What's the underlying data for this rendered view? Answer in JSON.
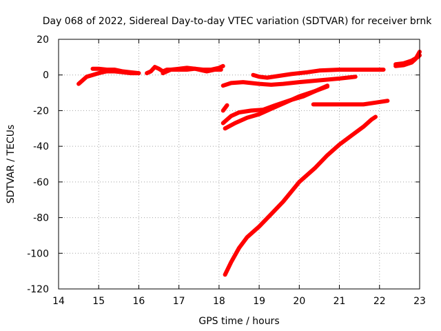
{
  "chart_data": {
    "type": "line",
    "title": "Day 068 of 2022, Sidereal Day-to-day VTEC variation (SDTVAR) for receiver brnk",
    "xlabel": "GPS time / hours",
    "ylabel": "SDTVAR / TECUs",
    "xlim": [
      14,
      23
    ],
    "ylim": [
      -120,
      20
    ],
    "xticks": [
      14,
      15,
      16,
      17,
      18,
      19,
      20,
      21,
      22,
      23
    ],
    "yticks": [
      -120,
      -100,
      -80,
      -60,
      -40,
      -20,
      0,
      20
    ],
    "grid": true,
    "color": "#ff0000",
    "series": [
      {
        "points": [
          [
            14.5,
            -5
          ],
          [
            14.6,
            -3
          ],
          [
            14.7,
            -1
          ],
          [
            14.85,
            0
          ],
          [
            15.0,
            1
          ],
          [
            15.2,
            2
          ],
          [
            15.4,
            2
          ],
          [
            15.6,
            1.5
          ],
          [
            15.8,
            1
          ],
          [
            16.0,
            1
          ]
        ]
      },
      {
        "points": [
          [
            14.85,
            3.5
          ],
          [
            15.0,
            3.5
          ],
          [
            15.2,
            3
          ],
          [
            15.4,
            3
          ],
          [
            15.6,
            2
          ],
          [
            15.8,
            1.5
          ],
          [
            16.0,
            1
          ]
        ]
      },
      {
        "points": [
          [
            16.2,
            1
          ],
          [
            16.3,
            2
          ],
          [
            16.4,
            4.5
          ],
          [
            16.5,
            3.5
          ],
          [
            16.6,
            2
          ],
          [
            16.7,
            3
          ],
          [
            16.9,
            3
          ],
          [
            17.0,
            3
          ],
          [
            17.2,
            3
          ],
          [
            17.4,
            3.5
          ],
          [
            17.6,
            3
          ],
          [
            17.8,
            3
          ],
          [
            18.0,
            4
          ],
          [
            18.1,
            5
          ]
        ]
      },
      {
        "points": [
          [
            16.6,
            1
          ],
          [
            16.7,
            2
          ],
          [
            16.8,
            3
          ],
          [
            17.0,
            3.5
          ],
          [
            17.2,
            4
          ],
          [
            17.4,
            3.5
          ],
          [
            17.6,
            2.5
          ],
          [
            17.7,
            2
          ],
          [
            17.9,
            3
          ],
          [
            18.05,
            3
          ]
        ]
      },
      {
        "points": [
          [
            18.1,
            -6
          ],
          [
            18.3,
            -4.5
          ],
          [
            18.6,
            -4
          ],
          [
            18.8,
            -4.5
          ],
          [
            19.0,
            -5
          ],
          [
            19.3,
            -5.5
          ],
          [
            19.6,
            -5
          ],
          [
            20.0,
            -4
          ],
          [
            20.5,
            -3
          ],
          [
            21.0,
            -2
          ],
          [
            21.4,
            -1
          ]
        ]
      },
      {
        "points": [
          [
            18.85,
            0
          ],
          [
            19.0,
            -1
          ],
          [
            19.2,
            -1.5
          ],
          [
            19.5,
            -0.5
          ],
          [
            19.8,
            0.5
          ],
          [
            20.2,
            1.5
          ],
          [
            20.5,
            2.5
          ],
          [
            21.0,
            3
          ],
          [
            21.5,
            3
          ],
          [
            22.0,
            3
          ],
          [
            22.1,
            3
          ]
        ]
      },
      {
        "points": [
          [
            18.1,
            -20
          ],
          [
            18.2,
            -17
          ]
        ]
      },
      {
        "points": [
          [
            18.1,
            -27
          ],
          [
            18.3,
            -23
          ],
          [
            18.5,
            -21
          ],
          [
            18.8,
            -20
          ],
          [
            19.1,
            -19.5
          ],
          [
            19.4,
            -17
          ],
          [
            19.8,
            -14
          ],
          [
            20.1,
            -12
          ],
          [
            20.4,
            -9
          ],
          [
            20.7,
            -6
          ]
        ]
      },
      {
        "points": [
          [
            18.15,
            -30
          ],
          [
            18.4,
            -27
          ],
          [
            18.7,
            -24
          ],
          [
            19.0,
            -22
          ],
          [
            19.3,
            -19
          ],
          [
            19.6,
            -16
          ],
          [
            20.0,
            -12
          ],
          [
            20.4,
            -9
          ],
          [
            20.7,
            -6.5
          ]
        ]
      },
      {
        "points": [
          [
            20.35,
            -16.5
          ],
          [
            20.7,
            -16.5
          ],
          [
            21.0,
            -16.5
          ],
          [
            21.3,
            -16.5
          ],
          [
            21.6,
            -16.5
          ],
          [
            21.9,
            -15.5
          ],
          [
            22.2,
            -14.5
          ]
        ]
      },
      {
        "points": [
          [
            18.15,
            -112
          ],
          [
            18.3,
            -105
          ],
          [
            18.5,
            -97
          ],
          [
            18.7,
            -91
          ],
          [
            19.0,
            -85
          ],
          [
            19.3,
            -78
          ],
          [
            19.6,
            -71
          ],
          [
            20.0,
            -60
          ],
          [
            20.4,
            -52
          ],
          [
            20.7,
            -45
          ],
          [
            21.0,
            -39
          ],
          [
            21.3,
            -34
          ],
          [
            21.6,
            -29
          ],
          [
            21.8,
            -25
          ],
          [
            21.9,
            -23.5
          ]
        ]
      },
      {
        "points": [
          [
            22.4,
            6
          ],
          [
            22.6,
            6.5
          ],
          [
            22.8,
            8
          ],
          [
            22.95,
            10
          ],
          [
            23.0,
            11
          ]
        ]
      },
      {
        "points": [
          [
            22.4,
            5
          ],
          [
            22.6,
            5.5
          ],
          [
            22.8,
            7
          ],
          [
            22.9,
            9
          ],
          [
            23.0,
            13
          ]
        ]
      }
    ]
  }
}
